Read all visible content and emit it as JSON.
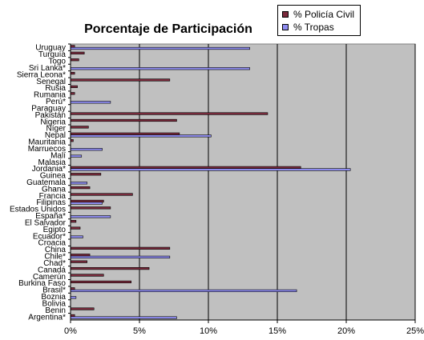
{
  "chart_data": {
    "type": "bar",
    "orientation": "horizontal",
    "title": "Porcentaje de Participación",
    "categories": [
      "Uruguay",
      "Turquía",
      "Togo",
      "Sri Lanka*",
      "Sierra Leona*",
      "Senegal",
      "Rusia",
      "Rumania",
      "Perú*",
      "Paraguay",
      "Pakistán",
      "Nigeria",
      "Níger",
      "Nepal",
      "Mauritania",
      "Marruecos",
      "Malí",
      "Malasia",
      "Jordania*",
      "Guinea",
      "Guatemala",
      "Ghana",
      "Francia",
      "Filipinas",
      "Estados Unidos",
      "España*",
      "El Salvador",
      "Egipto",
      "Ecuador*",
      "Croacia",
      "China",
      "Chile*",
      "Chad*",
      "Canadá",
      "Camerún",
      "Burkina Faso",
      "Brasil*",
      "Boznia",
      "Bolivia",
      "Benin",
      "Argentina*"
    ],
    "series": [
      {
        "name": "% Policía Civil",
        "color": "#7a2a3c",
        "values": [
          0.3,
          1.0,
          0.6,
          0.0,
          0.3,
          7.2,
          0.5,
          0.3,
          0.0,
          0.0,
          14.3,
          7.7,
          1.3,
          7.9,
          0.2,
          0.0,
          0.0,
          0.0,
          16.7,
          2.2,
          0.0,
          1.4,
          4.5,
          2.4,
          2.9,
          0.0,
          0.4,
          0.7,
          0.0,
          0.0,
          7.2,
          1.4,
          1.2,
          5.7,
          2.4,
          4.4,
          0.3,
          0.0,
          0.0,
          1.7,
          0.3
        ]
      },
      {
        "name": "% Tropas",
        "color": "#8e8cf0",
        "values": [
          13.0,
          0.0,
          0.0,
          13.0,
          0.0,
          0.0,
          0.0,
          0.0,
          2.9,
          0.0,
          0.0,
          0.0,
          0.0,
          10.2,
          0.0,
          2.3,
          0.8,
          0.0,
          20.3,
          0.0,
          1.2,
          0.0,
          0.0,
          2.3,
          0.0,
          2.9,
          0.0,
          0.0,
          0.9,
          0.0,
          0.0,
          7.2,
          0.0,
          0.0,
          0.0,
          0.0,
          16.4,
          0.4,
          0.0,
          0.0,
          7.7
        ]
      }
    ],
    "xlim": [
      0,
      25
    ],
    "x_ticks": [
      "0%",
      "5%",
      "10%",
      "15%",
      "20%",
      "25%"
    ],
    "grid": "vertical",
    "legend_position": "top-right",
    "plot_background": "#c0c0c0"
  }
}
